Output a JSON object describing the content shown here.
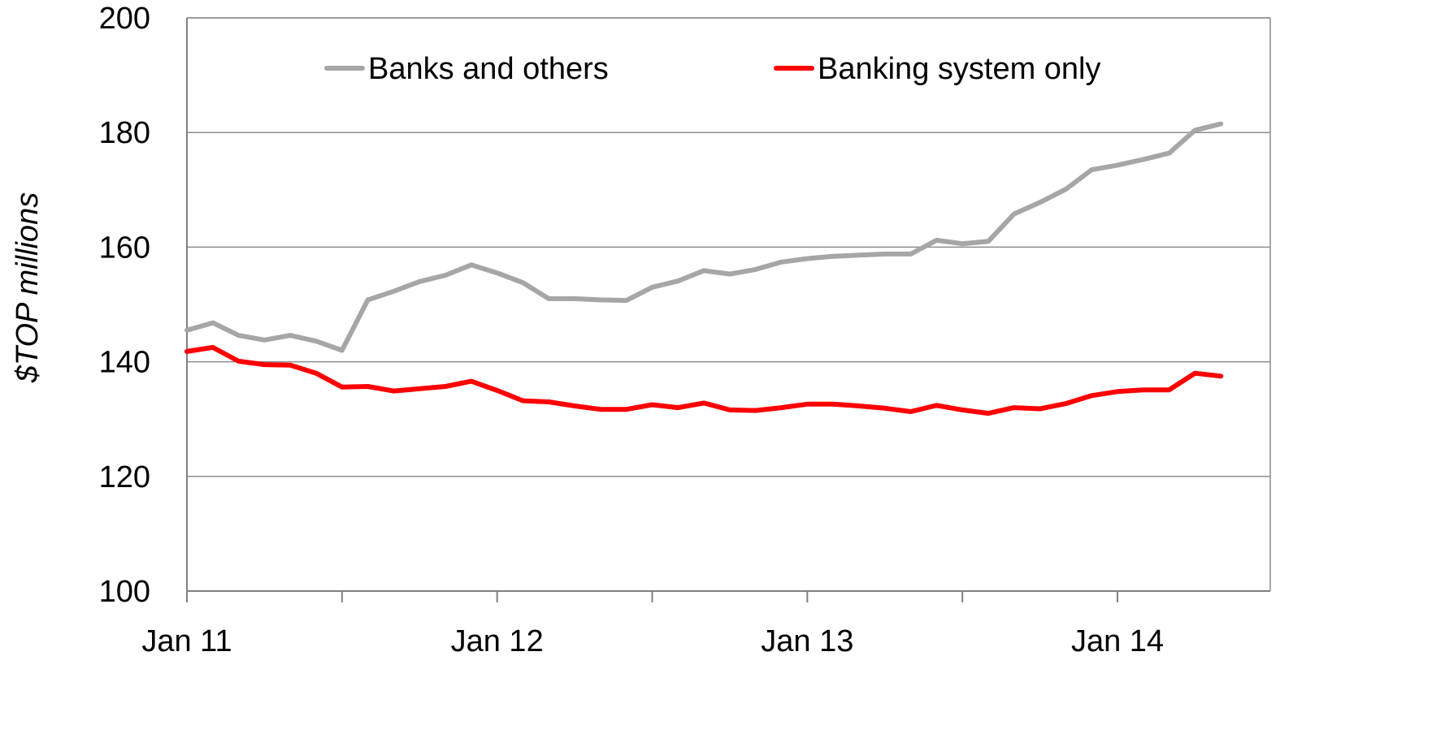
{
  "chart_data": {
    "type": "line",
    "ylabel": "$TOP millions",
    "ylim": [
      100,
      200
    ],
    "yticks": [
      100,
      120,
      140,
      160,
      180,
      200
    ],
    "x_start_label": "Jan 11",
    "xtick_labels": [
      "Jan 11",
      "Jan 12",
      "Jan 13",
      "Jan 14"
    ],
    "grid": true,
    "legend_position": "top",
    "series": [
      {
        "name": "Banks and others",
        "color": "#a6a6a6",
        "values": [
          145.5,
          146.8,
          144.6,
          143.8,
          144.6,
          143.6,
          142,
          150.8,
          152.3,
          154,
          155.1,
          156.9,
          155.5,
          153.8,
          151,
          151,
          150.8,
          150.7,
          153,
          154.1,
          155.9,
          155.3,
          156.1,
          157.4,
          158,
          158.4,
          158.6,
          158.8,
          158.8,
          161.2,
          160.6,
          161,
          165.8,
          167.8,
          170.1,
          173.5,
          174.3,
          175.3,
          176.4,
          180.4,
          181.5
        ]
      },
      {
        "name": "Banking system only",
        "color": "#ff0000",
        "values": [
          141.8,
          142.5,
          140.1,
          139.5,
          139.4,
          138,
          135.6,
          135.7,
          134.9,
          135.3,
          135.7,
          136.6,
          135,
          133.2,
          133,
          132.3,
          131.7,
          131.7,
          132.5,
          132,
          132.8,
          131.6,
          131.5,
          132,
          132.6,
          132.6,
          132.3,
          131.9,
          131.3,
          132.4,
          131.6,
          131,
          132,
          131.8,
          132.7,
          134.1,
          134.8,
          135.1,
          135.1,
          138,
          137.5
        ]
      }
    ]
  }
}
